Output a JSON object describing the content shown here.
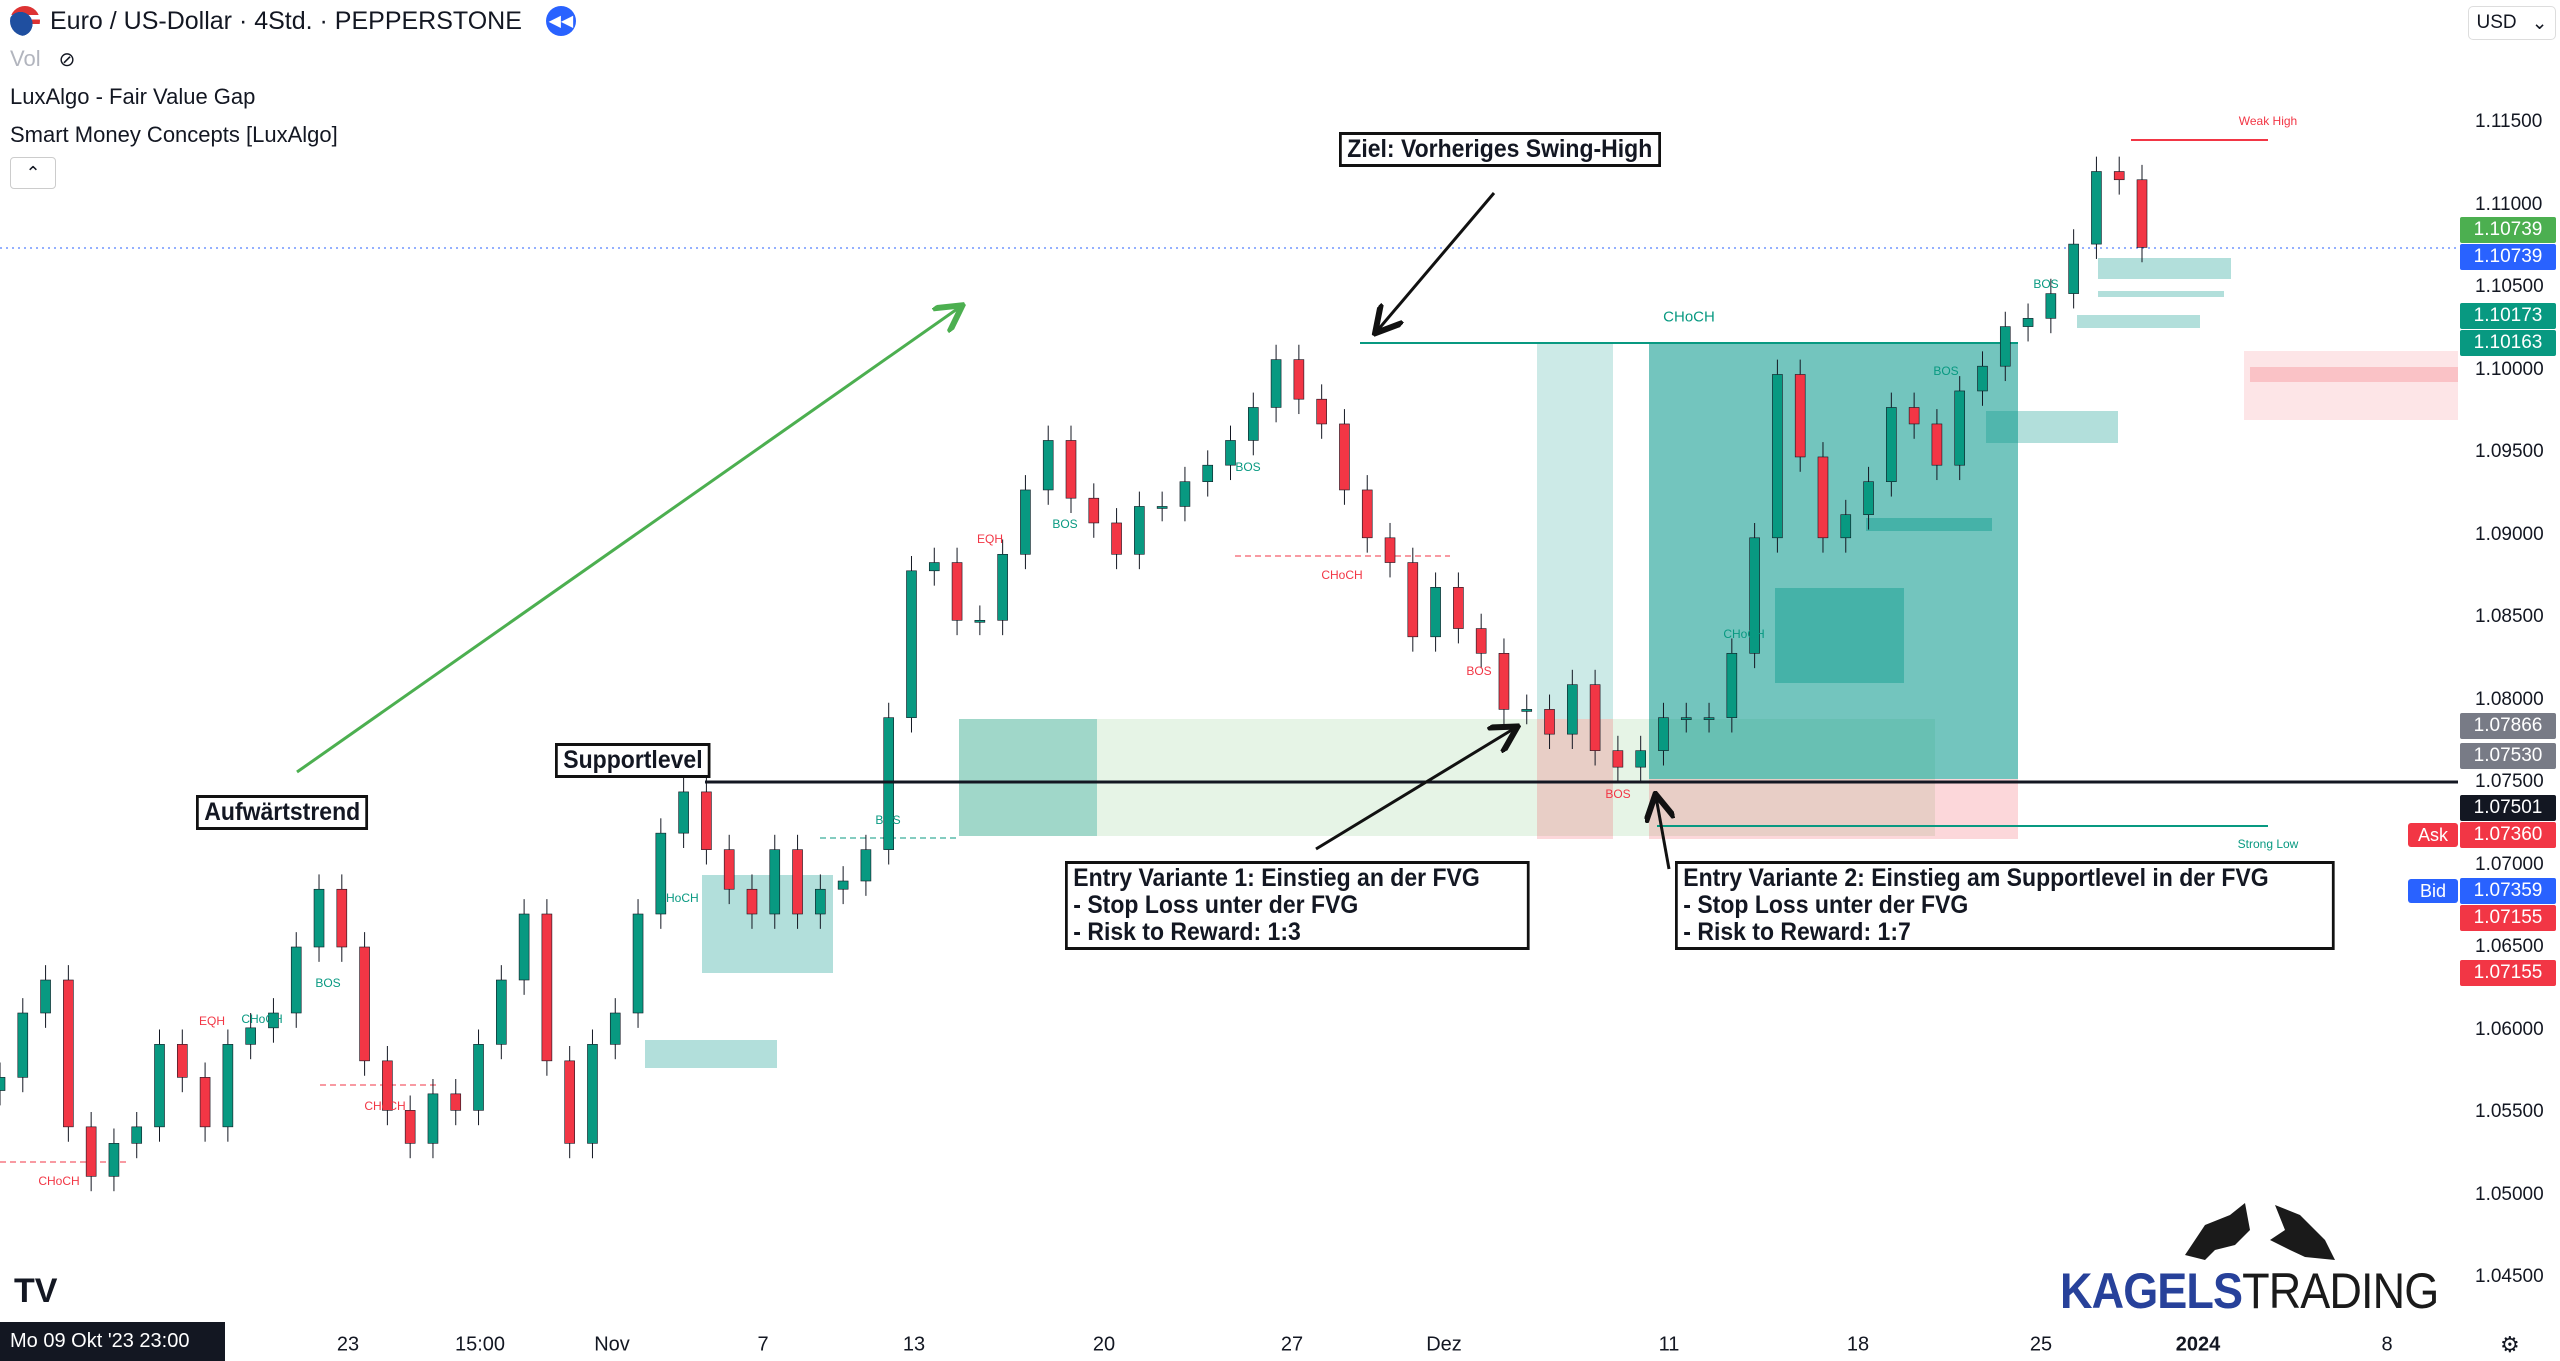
{
  "header": {
    "title": "Euro / US-Dollar · 4Std. · PEPPERSTONE",
    "vol_label": "Vol",
    "indicators": [
      "LuxAlgo - Fair Value Gap",
      "Smart Money Concepts [LuxAlgo]"
    ],
    "currency": "USD",
    "icons": [
      "eur-usd-flag-icon",
      "replay-icon",
      "eye-off-icon",
      "chevron-up-icon",
      "chevron-down-icon",
      "settings-icon"
    ]
  },
  "annotations": {
    "trend": "Aufwärtstrend",
    "support": "Supportlevel",
    "target": "Ziel: Vorheriges Swing-High",
    "entry1": "Entry Variante 1: Einstieg an der FVG\n- Stop Loss unter der FVG\n- Risk to Reward: 1:3",
    "entry2": "Entry Variante 2: Einstieg am Supportlevel in der FVG\n- Stop Loss unter der FVG\n- Risk to Reward: 1:7",
    "weak_high": "Weak High",
    "strong_low": "Strong Low",
    "choch_top": "CHoCH"
  },
  "smc_labels": [
    {
      "t": "BOS",
      "c": "#089981"
    },
    {
      "t": "EQH",
      "c": "#f23645"
    },
    {
      "t": "CHoCH",
      "c": "#089981"
    },
    {
      "t": "CHoCH",
      "c": "#f23645"
    },
    {
      "t": "CHoCH",
      "c": "#f23645"
    },
    {
      "t": "CHoCH",
      "c": "#089981"
    },
    {
      "t": "BOS",
      "c": "#089981"
    },
    {
      "t": "EQH",
      "c": "#f23645"
    },
    {
      "t": "BOS",
      "c": "#089981"
    },
    {
      "t": "BOS",
      "c": "#089981"
    },
    {
      "t": "CHoCH",
      "c": "#f23645"
    },
    {
      "t": "BOS",
      "c": "#f23645"
    },
    {
      "t": "BOS",
      "c": "#f23645"
    },
    {
      "t": "CHoCH",
      "c": "#089981"
    },
    {
      "t": "BOS",
      "c": "#089981"
    },
    {
      "t": "BOS",
      "c": "#089981"
    }
  ],
  "price_axis": {
    "ticks": [
      "1.11500",
      "1.11000",
      "1.10500",
      "1.10000",
      "1.09500",
      "1.09000",
      "1.08500",
      "1.08000",
      "1.07500",
      "1.07000",
      "1.06500",
      "1.06000",
      "1.05500",
      "1.05000",
      "1.04500"
    ],
    "badges": [
      {
        "v": "1.10739",
        "c": "#4caf50",
        "p": 1.10739
      },
      {
        "v": "1.10739",
        "c": "#2962ff",
        "p": 1.10739
      },
      {
        "v": "1.10173",
        "c": "#089981",
        "p": 1.10173
      },
      {
        "v": "1.10163",
        "c": "#089981",
        "p": 1.10163
      },
      {
        "v": "1.07866",
        "c": "#787b86",
        "p": 1.07866
      },
      {
        "v": "1.07530",
        "c": "#787b86",
        "p": 1.0753
      },
      {
        "v": "1.07501",
        "c": "#131722",
        "p": 1.07501
      },
      {
        "v": "1.07360",
        "c": "#f23645",
        "p": 1.0736
      },
      {
        "v": "1.07359",
        "c": "#2962ff",
        "p": 1.07359
      },
      {
        "v": "1.07155",
        "c": "#f23645",
        "p": 1.07155
      },
      {
        "v": "1.07155",
        "c": "#f23645",
        "p": 1.07155
      }
    ],
    "ask": "Ask",
    "bid": "Bid"
  },
  "time_axis": {
    "cursor": "Mo 09 Okt '23  23:00",
    "labels": [
      "23",
      "15:00",
      "Nov",
      "7",
      "13",
      "20",
      "27",
      "Dez",
      "11",
      "18",
      "25",
      "2024",
      "8"
    ]
  },
  "branding": {
    "logo_a": "KAGELS",
    "logo_b": "TRADING"
  },
  "chart_data": {
    "type": "candlestick",
    "symbol": "EURUSD",
    "timeframe": "4h",
    "ylim": [
      1.0425,
      1.1175
    ],
    "support_level": 1.0753,
    "last_price": 1.10739,
    "up_color": "#089981",
    "down_color": "#f23645",
    "closes": [
      1.0571,
      1.061,
      1.063,
      1.0541,
      1.0511,
      1.0531,
      1.0541,
      1.0591,
      1.0571,
      1.0541,
      1.0591,
      1.0601,
      1.061,
      1.065,
      1.0685,
      1.065,
      1.0581,
      1.0551,
      1.0531,
      1.0561,
      1.0551,
      1.0591,
      1.063,
      1.067,
      1.0581,
      1.0531,
      1.0591,
      1.061,
      1.067,
      1.0719,
      1.0744,
      1.0709,
      1.0685,
      1.067,
      1.0709,
      1.067,
      1.0685,
      1.069,
      1.0709,
      1.0789,
      1.0878,
      1.0883,
      1.0848,
      1.0848,
      1.0888,
      1.0927,
      1.0957,
      1.0922,
      1.0907,
      1.0888,
      1.0917,
      1.0917,
      1.0932,
      1.0942,
      1.0957,
      1.0977,
      1.1006,
      1.0982,
      1.0967,
      1.0927,
      1.0898,
      1.0883,
      1.0838,
      1.0868,
      1.0843,
      1.0828,
      1.0794,
      1.0794,
      1.0779,
      1.0809,
      1.0769,
      1.0759,
      1.0769,
      1.0789,
      1.0789,
      1.0789,
      1.0828,
      1.0898,
      1.0997,
      1.0947,
      1.0898,
      1.0912,
      1.0932,
      1.0977,
      1.0967,
      1.0942,
      1.0987,
      1.1002,
      1.1026,
      1.1031,
      1.1046,
      1.1076,
      1.112,
      1.1115,
      1.1074
    ]
  }
}
